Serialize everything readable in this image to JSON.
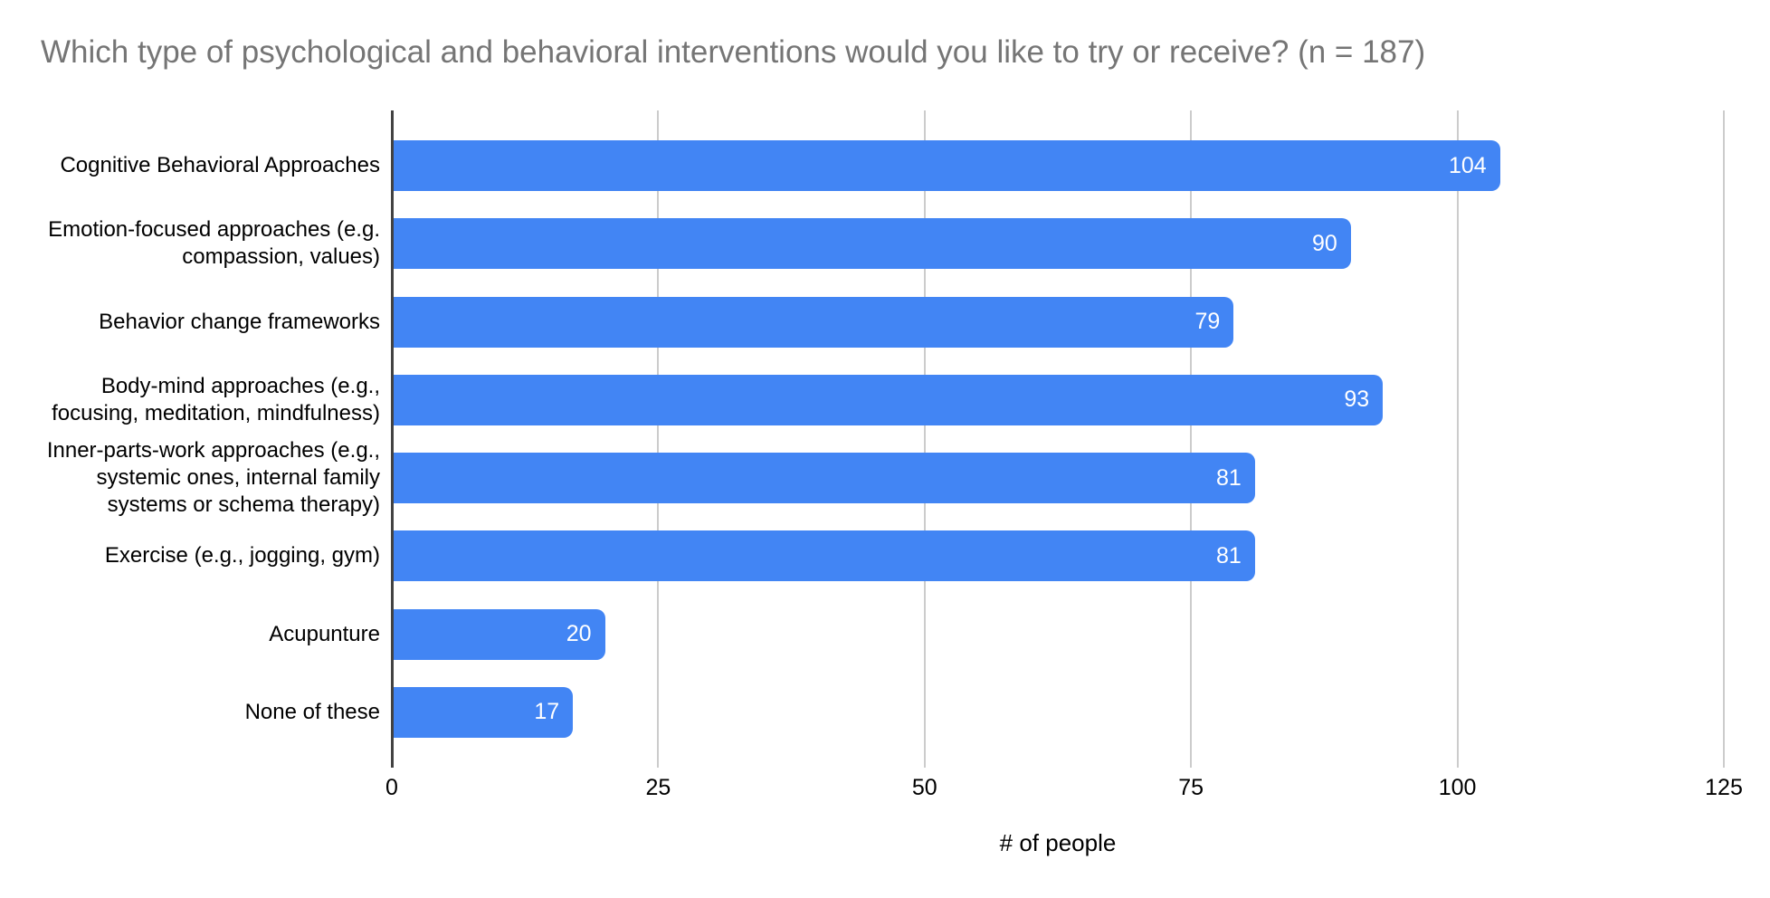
{
  "title": "Which type of psychological and behavioral interventions would you like to try or receive? (n = 187)",
  "colors": {
    "bar": "#4285f4",
    "title_text": "#757575",
    "gridline": "#cccccc",
    "axis_line": "#424242",
    "value_label": "#ffffff",
    "category_label": "#000000"
  },
  "chart_data": {
    "type": "bar",
    "orientation": "horizontal",
    "title": "Which type of psychological and behavioral interventions would you like to try or receive? (n = 187)",
    "categories": [
      "Cognitive Behavioral Approaches",
      "Emotion-focused approaches (e.g.\ncompassion, values)",
      "Behavior change frameworks",
      "Body-mind approaches (e.g.,\nfocusing, meditation, mindfulness)",
      "Inner-parts-work approaches (e.g.,\nsystemic ones, internal family\nsystems or schema therapy)",
      "Exercise (e.g., jogging, gym)",
      "Acupunture",
      "None of these"
    ],
    "values": [
      104,
      90,
      79,
      93,
      81,
      81,
      20,
      17
    ],
    "xlabel": "# of people",
    "xlim": [
      0,
      125
    ],
    "xticks": [
      0,
      25,
      50,
      75,
      100,
      125
    ],
    "grid": true,
    "legend": "none",
    "bar_color": "#4285f4",
    "value_labels_shown": true
  }
}
